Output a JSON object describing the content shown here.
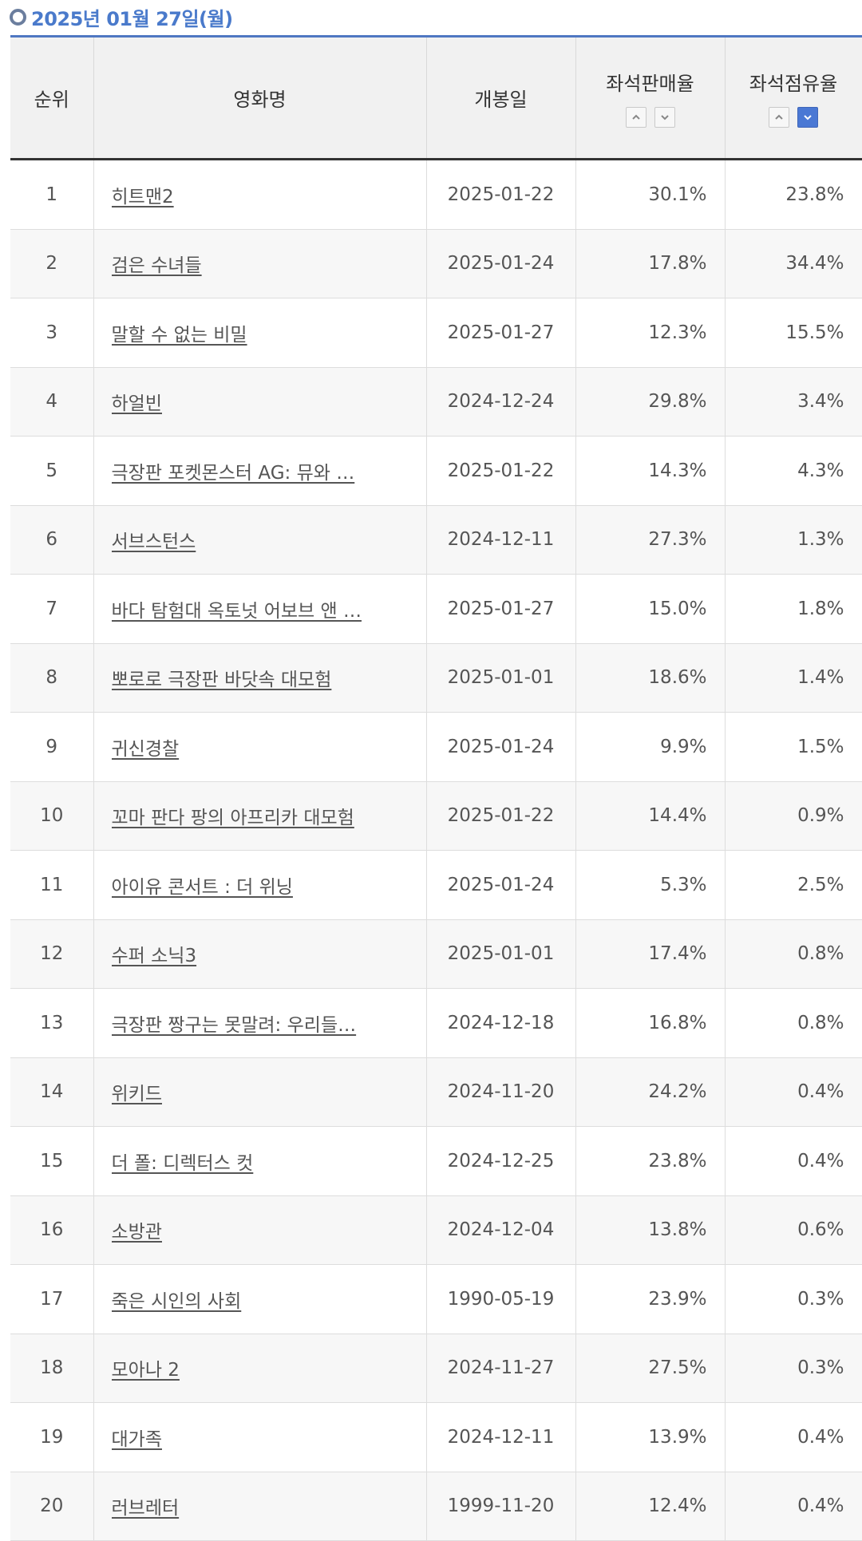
{
  "header": {
    "date": "2025년 01월 27일(월)"
  },
  "table": {
    "columns": {
      "rank": "순위",
      "title": "영화명",
      "open_date": "개봉일",
      "seat_sales": "좌석판매율",
      "seat_share": "좌석점유율"
    },
    "sort": {
      "seat_sales": "none",
      "seat_share": "desc"
    },
    "rows": [
      {
        "rank": "1",
        "title": "히트맨2",
        "open_date": "2025-01-22",
        "seat_sales": "30.1%",
        "seat_share": "23.8%"
      },
      {
        "rank": "2",
        "title": "검은 수녀들",
        "open_date": "2025-01-24",
        "seat_sales": "17.8%",
        "seat_share": "34.4%"
      },
      {
        "rank": "3",
        "title": "말할 수 없는 비밀",
        "open_date": "2025-01-27",
        "seat_sales": "12.3%",
        "seat_share": "15.5%"
      },
      {
        "rank": "4",
        "title": "하얼빈",
        "open_date": "2024-12-24",
        "seat_sales": "29.8%",
        "seat_share": "3.4%"
      },
      {
        "rank": "5",
        "title": "극장판 포켓몬스터 AG: 뮤와 …",
        "open_date": "2025-01-22",
        "seat_sales": "14.3%",
        "seat_share": "4.3%"
      },
      {
        "rank": "6",
        "title": "서브스턴스",
        "open_date": "2024-12-11",
        "seat_sales": "27.3%",
        "seat_share": "1.3%"
      },
      {
        "rank": "7",
        "title": "바다 탐험대 옥토넛 어보브 앤 …",
        "open_date": "2025-01-27",
        "seat_sales": "15.0%",
        "seat_share": "1.8%"
      },
      {
        "rank": "8",
        "title": "뽀로로 극장판 바닷속 대모험",
        "open_date": "2025-01-01",
        "seat_sales": "18.6%",
        "seat_share": "1.4%"
      },
      {
        "rank": "9",
        "title": "귀신경찰",
        "open_date": "2025-01-24",
        "seat_sales": "9.9%",
        "seat_share": "1.5%"
      },
      {
        "rank": "10",
        "title": "꼬마 판다 팡의 아프리카 대모험",
        "open_date": "2025-01-22",
        "seat_sales": "14.4%",
        "seat_share": "0.9%"
      },
      {
        "rank": "11",
        "title": "아이유 콘서트 : 더 위닝",
        "open_date": "2025-01-24",
        "seat_sales": "5.3%",
        "seat_share": "2.5%"
      },
      {
        "rank": "12",
        "title": "수퍼 소닉3",
        "open_date": "2025-01-01",
        "seat_sales": "17.4%",
        "seat_share": "0.8%"
      },
      {
        "rank": "13",
        "title": "극장판 짱구는 못말려: 우리들…",
        "open_date": "2024-12-18",
        "seat_sales": "16.8%",
        "seat_share": "0.8%"
      },
      {
        "rank": "14",
        "title": "위키드",
        "open_date": "2024-11-20",
        "seat_sales": "24.2%",
        "seat_share": "0.4%"
      },
      {
        "rank": "15",
        "title": "더 폴: 디렉터스 컷",
        "open_date": "2024-12-25",
        "seat_sales": "23.8%",
        "seat_share": "0.4%"
      },
      {
        "rank": "16",
        "title": "소방관",
        "open_date": "2024-12-04",
        "seat_sales": "13.8%",
        "seat_share": "0.6%"
      },
      {
        "rank": "17",
        "title": "죽은 시인의 사회",
        "open_date": "1990-05-19",
        "seat_sales": "23.9%",
        "seat_share": "0.3%"
      },
      {
        "rank": "18",
        "title": "모아나 2",
        "open_date": "2024-11-27",
        "seat_sales": "27.5%",
        "seat_share": "0.3%"
      },
      {
        "rank": "19",
        "title": "대가족",
        "open_date": "2024-12-11",
        "seat_sales": "13.9%",
        "seat_share": "0.4%"
      },
      {
        "rank": "20",
        "title": "러브레터",
        "open_date": "1999-11-20",
        "seat_sales": "12.4%",
        "seat_share": "0.4%"
      }
    ]
  }
}
